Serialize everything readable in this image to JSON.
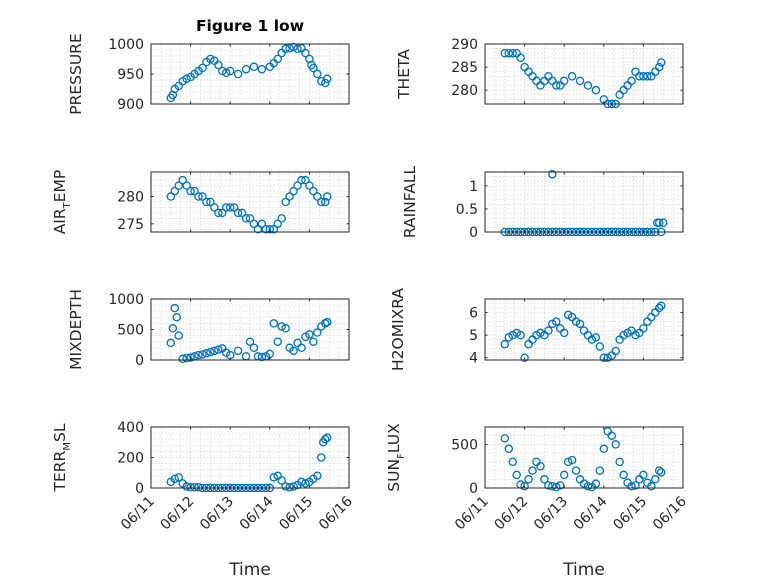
{
  "title": "Figure 1 low",
  "xlabel": "Time",
  "x_ticks": [
    "06/11",
    "06/12",
    "06/13",
    "06/14",
    "06/15",
    "06/16"
  ],
  "colors": {
    "marker": "#0072BD",
    "axis": "#262626",
    "grid": "#d6d6d6"
  },
  "chart_data": [
    {
      "type": "scatter",
      "id": "pressure",
      "ylabel": "PRESSURE",
      "ylabel_sub": null,
      "ylim": [
        900,
        1000
      ],
      "yticks": [
        900,
        950,
        1000
      ],
      "grid": true,
      "x_day_range": [
        11,
        16
      ],
      "x_tick_labels": [
        "06/11",
        "06/12",
        "06/13",
        "06/14",
        "06/15",
        "06/16"
      ],
      "x": [
        11.5,
        11.55,
        11.6,
        11.7,
        11.8,
        11.9,
        12.0,
        12.1,
        12.2,
        12.3,
        12.4,
        12.5,
        12.6,
        12.7,
        12.8,
        12.9,
        13.0,
        13.2,
        13.4,
        13.6,
        13.8,
        14.0,
        14.1,
        14.2,
        14.3,
        14.4,
        14.5,
        14.6,
        14.7,
        14.8,
        14.9,
        15.0,
        15.05,
        15.1,
        15.2,
        15.3,
        15.4,
        15.45
      ],
      "y": [
        910,
        915,
        925,
        930,
        938,
        942,
        945,
        950,
        955,
        960,
        970,
        975,
        972,
        965,
        955,
        952,
        955,
        950,
        958,
        962,
        958,
        962,
        968,
        975,
        985,
        992,
        993,
        995,
        992,
        993,
        985,
        975,
        965,
        960,
        950,
        938,
        935,
        942
      ]
    },
    {
      "type": "scatter",
      "id": "theta",
      "ylabel": "THETA",
      "ylabel_sub": null,
      "ylim": [
        277,
        290
      ],
      "yticks": [
        280,
        285,
        290
      ],
      "grid": true,
      "x_day_range": [
        11,
        16
      ],
      "x_tick_labels": [
        "06/11",
        "06/12",
        "06/13",
        "06/14",
        "06/15",
        "06/16"
      ],
      "x": [
        11.5,
        11.6,
        11.7,
        11.8,
        11.9,
        12.0,
        12.1,
        12.2,
        12.3,
        12.4,
        12.5,
        12.6,
        12.7,
        12.8,
        12.9,
        13.0,
        13.2,
        13.4,
        13.6,
        13.8,
        14.0,
        14.1,
        14.2,
        14.3,
        14.4,
        14.5,
        14.6,
        14.7,
        14.8,
        14.9,
        15.0,
        15.1,
        15.2,
        15.3,
        15.4,
        15.45
      ],
      "y": [
        288,
        288,
        288,
        288,
        287,
        285,
        284,
        283,
        282,
        281,
        282,
        283,
        282,
        281,
        281,
        282,
        283,
        282,
        281,
        280,
        278,
        277,
        277,
        277,
        279,
        280,
        281,
        282,
        284,
        283,
        283,
        283,
        283,
        284,
        285,
        286
      ]
    },
    {
      "type": "scatter",
      "id": "air_temp",
      "ylabel": "AIR",
      "ylabel_sub": "T",
      "ylabel_suffix": "EMP",
      "ylim": [
        273.5,
        284.5
      ],
      "yticks": [
        275,
        280
      ],
      "grid": true,
      "x_day_range": [
        11,
        16
      ],
      "x_tick_labels": [
        "06/11",
        "06/12",
        "06/13",
        "06/14",
        "06/15",
        "06/16"
      ],
      "x": [
        11.5,
        11.6,
        11.7,
        11.8,
        11.9,
        12.0,
        12.1,
        12.2,
        12.3,
        12.4,
        12.5,
        12.6,
        12.7,
        12.8,
        12.9,
        13.0,
        13.1,
        13.2,
        13.3,
        13.4,
        13.5,
        13.6,
        13.7,
        13.8,
        13.9,
        14.0,
        14.1,
        14.2,
        14.3,
        14.4,
        14.5,
        14.6,
        14.7,
        14.8,
        14.9,
        15.0,
        15.1,
        15.2,
        15.3,
        15.4,
        15.45
      ],
      "y": [
        280,
        281,
        282,
        283,
        282,
        281,
        281,
        280,
        280,
        279,
        279,
        278,
        277,
        277,
        278,
        278,
        278,
        277,
        277,
        276,
        276,
        275,
        274,
        275,
        274,
        274,
        274,
        275,
        276,
        279,
        280,
        281,
        282,
        283,
        283,
        282,
        281,
        280,
        279,
        279,
        280
      ]
    },
    {
      "type": "scatter",
      "id": "rainfall",
      "ylabel": "RAINFALL",
      "ylabel_sub": null,
      "ylim": [
        0,
        1.3
      ],
      "yticks": [
        0,
        0.5,
        1
      ],
      "grid": true,
      "x_day_range": [
        11,
        16
      ],
      "x_tick_labels": [
        "06/11",
        "06/12",
        "06/13",
        "06/14",
        "06/15",
        "06/16"
      ],
      "x": [
        11.5,
        11.6,
        11.7,
        11.8,
        11.9,
        12.0,
        12.1,
        12.2,
        12.3,
        12.4,
        12.5,
        12.6,
        12.7,
        12.8,
        12.9,
        13.0,
        13.1,
        13.2,
        13.3,
        13.4,
        13.5,
        13.6,
        13.7,
        13.8,
        13.9,
        14.0,
        14.1,
        14.2,
        14.3,
        14.4,
        14.5,
        14.6,
        14.7,
        14.8,
        14.9,
        15.0,
        15.1,
        15.2,
        15.3,
        15.35,
        15.4,
        15.45,
        15.5,
        12.7
      ],
      "y": [
        0,
        0,
        0,
        0,
        0,
        0,
        0,
        0,
        0,
        0,
        0,
        0,
        0,
        0,
        0,
        0,
        0,
        0,
        0,
        0,
        0,
        0,
        0,
        0,
        0,
        0,
        0,
        0,
        0,
        0,
        0,
        0,
        0,
        0,
        0,
        0,
        0,
        0,
        0,
        0.2,
        0.2,
        0,
        0.2,
        1.25
      ]
    },
    {
      "type": "scatter",
      "id": "mixdepth",
      "ylabel": "MIXDEPTH",
      "ylabel_sub": null,
      "ylim": [
        0,
        1000
      ],
      "yticks": [
        0,
        500,
        1000
      ],
      "grid": true,
      "x_day_range": [
        11,
        16
      ],
      "x_tick_labels": [
        "06/11",
        "06/12",
        "06/13",
        "06/14",
        "06/15",
        "06/16"
      ],
      "x": [
        11.5,
        11.55,
        11.6,
        11.65,
        11.7,
        11.8,
        11.9,
        12.0,
        12.1,
        12.2,
        12.3,
        12.4,
        12.5,
        12.6,
        12.7,
        12.8,
        12.9,
        13.0,
        13.2,
        13.4,
        13.5,
        13.6,
        13.7,
        13.8,
        13.9,
        14.0,
        14.1,
        14.2,
        14.3,
        14.4,
        14.5,
        14.6,
        14.7,
        14.8,
        14.9,
        15.0,
        15.1,
        15.2,
        15.3,
        15.4,
        15.45
      ],
      "y": [
        280,
        520,
        850,
        700,
        400,
        20,
        30,
        40,
        60,
        80,
        90,
        110,
        130,
        150,
        170,
        190,
        120,
        80,
        150,
        60,
        300,
        200,
        60,
        50,
        60,
        100,
        600,
        300,
        550,
        520,
        200,
        150,
        280,
        200,
        380,
        420,
        300,
        450,
        550,
        600,
        620
      ]
    },
    {
      "type": "scatter",
      "id": "h2omixra",
      "ylabel": "H2OMIXRA",
      "ylabel_sub": null,
      "ylim": [
        3.9,
        6.6
      ],
      "yticks": [
        4,
        5,
        6
      ],
      "grid": true,
      "x_day_range": [
        11,
        16
      ],
      "x_tick_labels": [
        "06/11",
        "06/12",
        "06/13",
        "06/14",
        "06/15",
        "06/16"
      ],
      "x": [
        11.5,
        11.6,
        11.7,
        11.8,
        11.9,
        12.0,
        12.1,
        12.2,
        12.3,
        12.4,
        12.5,
        12.6,
        12.7,
        12.8,
        12.9,
        13.0,
        13.1,
        13.2,
        13.3,
        13.4,
        13.5,
        13.6,
        13.7,
        13.8,
        13.9,
        14.0,
        14.1,
        14.2,
        14.3,
        14.4,
        14.5,
        14.6,
        14.7,
        14.8,
        14.9,
        15.0,
        15.1,
        15.2,
        15.3,
        15.4,
        15.45
      ],
      "y": [
        4.6,
        4.9,
        5.0,
        5.1,
        5.0,
        4.0,
        4.6,
        4.8,
        5.0,
        5.1,
        5.0,
        5.2,
        5.5,
        5.6,
        5.3,
        5.1,
        5.9,
        5.8,
        5.6,
        5.5,
        5.2,
        5.0,
        4.8,
        4.9,
        4.5,
        4.0,
        4.0,
        4.1,
        4.3,
        4.8,
        5.0,
        5.1,
        5.2,
        5.0,
        5.1,
        5.3,
        5.6,
        5.8,
        6.0,
        6.2,
        6.3
      ]
    },
    {
      "type": "scatter",
      "id": "terr_msl",
      "ylabel": "TERR",
      "ylabel_sub": "M",
      "ylabel_suffix": "SL",
      "ylim": [
        0,
        400
      ],
      "yticks": [
        0,
        200,
        400
      ],
      "grid": true,
      "x_day_range": [
        11,
        16
      ],
      "x_tick_labels": [
        "06/11",
        "06/12",
        "06/13",
        "06/14",
        "06/15",
        "06/16"
      ],
      "x": [
        11.5,
        11.6,
        11.7,
        11.8,
        11.9,
        12.0,
        12.1,
        12.2,
        12.3,
        12.4,
        12.5,
        12.6,
        12.7,
        12.8,
        12.9,
        13.0,
        13.1,
        13.2,
        13.3,
        13.4,
        13.5,
        13.6,
        13.7,
        13.8,
        13.9,
        14.0,
        14.1,
        14.2,
        14.3,
        14.4,
        14.5,
        14.6,
        14.7,
        14.8,
        14.9,
        15.0,
        15.1,
        15.2,
        15.3,
        15.35,
        15.4,
        15.45
      ],
      "y": [
        40,
        60,
        70,
        30,
        10,
        5,
        5,
        5,
        0,
        0,
        0,
        0,
        0,
        0,
        0,
        0,
        0,
        0,
        0,
        0,
        0,
        0,
        0,
        0,
        0,
        0,
        70,
        80,
        50,
        10,
        5,
        10,
        20,
        40,
        30,
        40,
        60,
        80,
        200,
        300,
        320,
        330
      ]
    },
    {
      "type": "scatter",
      "id": "sun_flux",
      "ylabel": "SUN",
      "ylabel_sub": "F",
      "ylabel_suffix": "LUX",
      "ylim": [
        0,
        700
      ],
      "yticks": [
        0,
        500
      ],
      "grid": true,
      "x_day_range": [
        11,
        16
      ],
      "x_tick_labels": [
        "06/11",
        "06/12",
        "06/13",
        "06/14",
        "06/15",
        "06/16"
      ],
      "x": [
        11.5,
        11.6,
        11.7,
        11.8,
        11.9,
        12.0,
        12.1,
        12.2,
        12.3,
        12.4,
        12.5,
        12.6,
        12.7,
        12.8,
        12.9,
        13.0,
        13.1,
        13.2,
        13.3,
        13.4,
        13.5,
        13.6,
        13.7,
        13.8,
        13.9,
        14.0,
        14.1,
        14.2,
        14.3,
        14.4,
        14.5,
        14.6,
        14.7,
        14.8,
        14.9,
        15.0,
        15.1,
        15.2,
        15.3,
        15.4,
        15.45
      ],
      "y": [
        570,
        450,
        300,
        150,
        40,
        20,
        100,
        200,
        300,
        250,
        100,
        30,
        20,
        10,
        30,
        150,
        300,
        320,
        200,
        100,
        50,
        20,
        10,
        50,
        200,
        450,
        650,
        600,
        500,
        300,
        150,
        60,
        20,
        30,
        100,
        150,
        60,
        20,
        100,
        200,
        180
      ]
    }
  ]
}
